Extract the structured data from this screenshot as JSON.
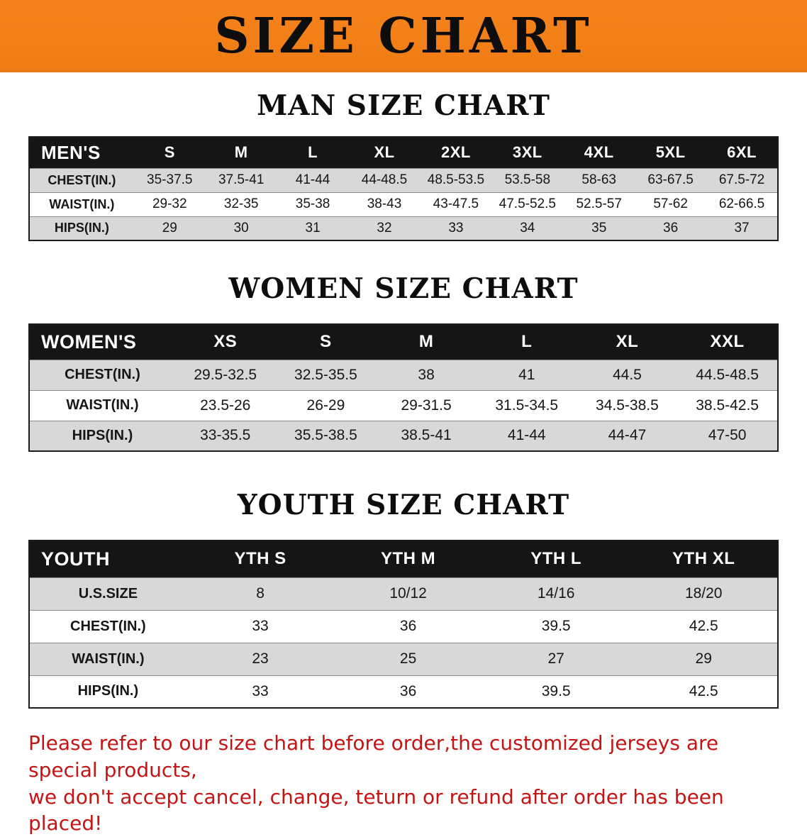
{
  "banner": {
    "title": "SIZE CHART"
  },
  "sections": [
    {
      "id": "men-size-chart",
      "heading": "MAN SIZE CHART",
      "table": {
        "header": [
          "MEN'S",
          "S",
          "M",
          "L",
          "XL",
          "2XL",
          "3XL",
          "4XL",
          "5XL",
          "6XL"
        ],
        "rows": [
          [
            "CHEST(IN.)",
            "35-37.5",
            "37.5-41",
            "41-44",
            "44-48.5",
            "48.5-53.5",
            "53.5-58",
            "58-63",
            "63-67.5",
            "67.5-72"
          ],
          [
            "WAIST(IN.)",
            "29-32",
            "32-35",
            "35-38",
            "38-43",
            "43-47.5",
            "47.5-52.5",
            "52.5-57",
            "57-62",
            "62-66.5"
          ],
          [
            "HIPS(IN.)",
            "29",
            "30",
            "31",
            "32",
            "33",
            "34",
            "35",
            "36",
            "37"
          ]
        ]
      }
    },
    {
      "id": "women-size-chart",
      "heading": "WOMEN SIZE CHART",
      "table": {
        "header": [
          "WOMEN'S",
          "XS",
          "S",
          "M",
          "L",
          "XL",
          "XXL"
        ],
        "rows": [
          [
            "CHEST(IN.)",
            "29.5-32.5",
            "32.5-35.5",
            "38",
            "41",
            "44.5",
            "44.5-48.5"
          ],
          [
            "WAIST(IN.)",
            "23.5-26",
            "26-29",
            "29-31.5",
            "31.5-34.5",
            "34.5-38.5",
            "38.5-42.5"
          ],
          [
            "HIPS(IN.)",
            "33-35.5",
            "35.5-38.5",
            "38.5-41",
            "41-44",
            "44-47",
            "47-50"
          ]
        ]
      }
    },
    {
      "id": "youth-size-chart",
      "heading": "YOUTH SIZE CHART",
      "table": {
        "header": [
          "YOUTH",
          "YTH S",
          "YTH M",
          "YTH L",
          "YTH XL"
        ],
        "rows": [
          [
            "U.S.SIZE",
            "8",
            "10/12",
            "14/16",
            "18/20"
          ],
          [
            "CHEST(IN.)",
            "33",
            "36",
            "39.5",
            "42.5"
          ],
          [
            "WAIST(IN.)",
            "23",
            "25",
            "27",
            "29"
          ],
          [
            "HIPS(IN.)",
            "33",
            "36",
            "39.5",
            "42.5"
          ]
        ]
      }
    }
  ],
  "disclaimer": {
    "lines": [
      "Please refer to our size chart before order,the customized jerseys are special products,",
      "we don't accept cancel, change, teturn or refund after order has been placed!"
    ]
  },
  "colors": {
    "banner_orange": "#f5831d",
    "banner_orange_dark": "#ef7c13",
    "header_bg": "#151515",
    "row_stripe": "#d8d8d8",
    "disclaimer_red": "#c41414"
  }
}
